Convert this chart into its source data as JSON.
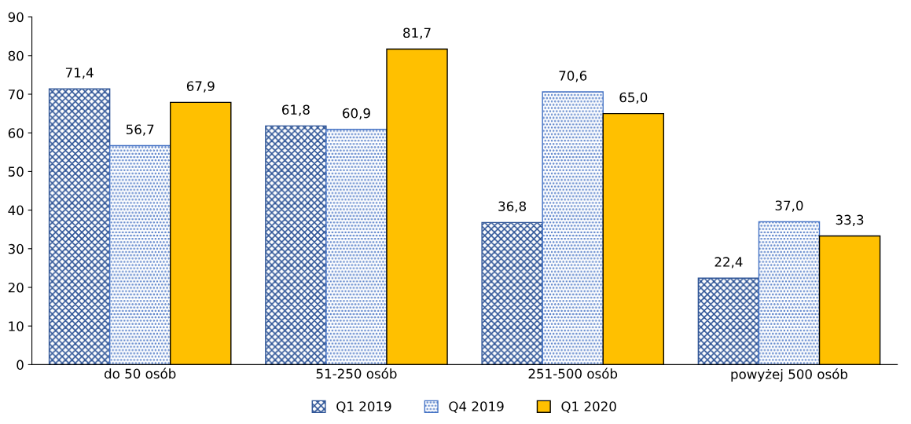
{
  "chart_data": {
    "type": "bar",
    "categories": [
      "do 50 osób",
      "51-250 osób",
      "251-500 osób",
      "powyżej 500 osób"
    ],
    "series": [
      {
        "name": "Q1 2019",
        "color": "#2f5597",
        "values": [
          71.4,
          61.8,
          36.8,
          22.4
        ],
        "value_labels": [
          "71,4",
          "61,8",
          "36,8",
          "22,4"
        ]
      },
      {
        "name": "Q4 2019",
        "color": "#4472c4",
        "values": [
          56.7,
          60.9,
          70.6,
          37.0
        ],
        "value_labels": [
          "56,7",
          "60,9",
          "70,6",
          "37,0"
        ]
      },
      {
        "name": "Q1 2020",
        "color": "#ffc000",
        "values": [
          67.9,
          81.7,
          65.0,
          33.3
        ],
        "value_labels": [
          "67,9",
          "81,7",
          "65,0",
          "33,3"
        ]
      }
    ],
    "ylim": [
      0,
      90
    ],
    "yticks": [
      0,
      10,
      20,
      30,
      40,
      50,
      60,
      70,
      80,
      90
    ],
    "grid": false,
    "legend": "bottom"
  }
}
